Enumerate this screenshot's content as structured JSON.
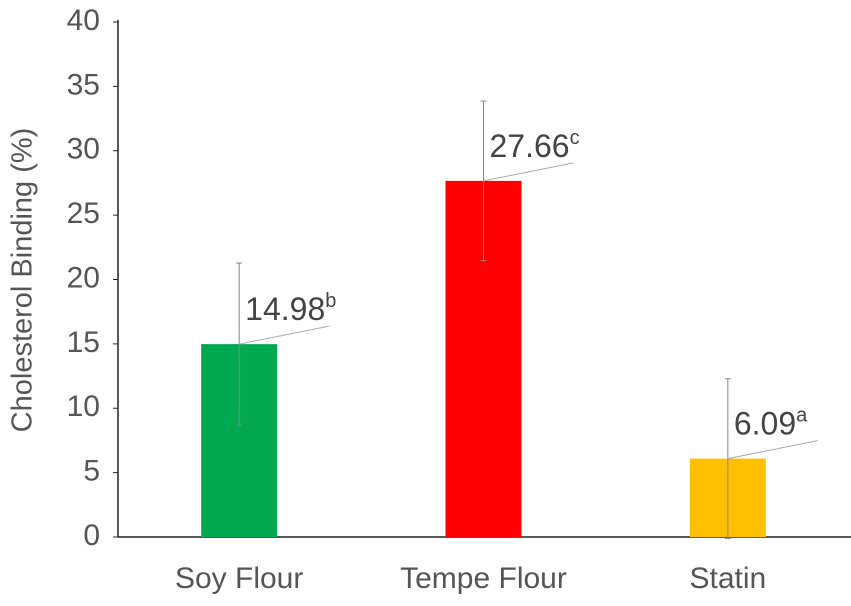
{
  "chart_data": {
    "type": "bar",
    "y_label": "Cholesterol Binding (%)",
    "categories": [
      "Soy Flour",
      "Tempe Flour",
      "Statin"
    ],
    "values": [
      14.98,
      27.66,
      6.09
    ],
    "significance": [
      "b",
      "c",
      "a"
    ],
    "errors": [
      6.3,
      6.2,
      6.2
    ],
    "colors": [
      "#00a84f",
      "#ff0000",
      "#ffc000"
    ],
    "ylim": [
      0,
      40
    ],
    "yticks": [
      0,
      5,
      10,
      15,
      20,
      25,
      30,
      35,
      40
    ],
    "grid": false
  }
}
